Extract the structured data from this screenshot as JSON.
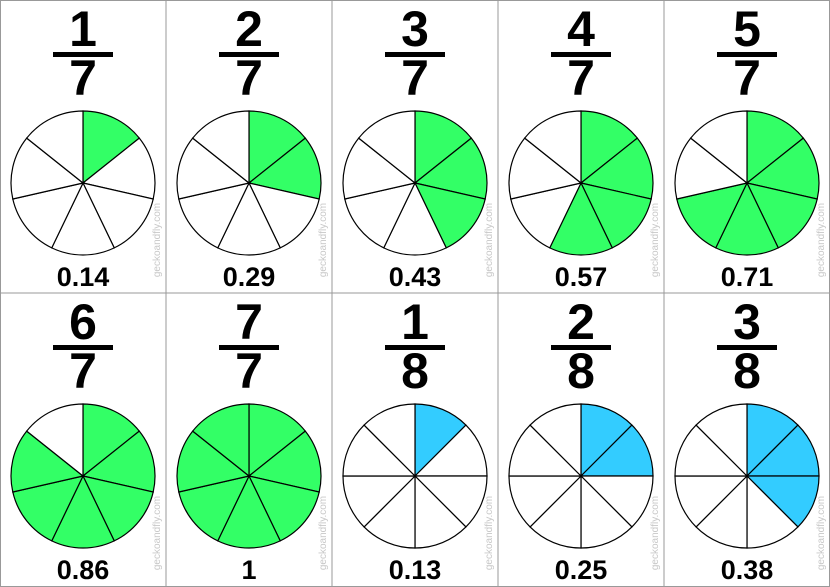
{
  "watermark": "geckoandfly.com",
  "cards": [
    {
      "numerator": 1,
      "denominator": 7,
      "decimal": "0.14",
      "color": "#33ff66"
    },
    {
      "numerator": 2,
      "denominator": 7,
      "decimal": "0.29",
      "color": "#33ff66"
    },
    {
      "numerator": 3,
      "denominator": 7,
      "decimal": "0.43",
      "color": "#33ff66"
    },
    {
      "numerator": 4,
      "denominator": 7,
      "decimal": "0.57",
      "color": "#33ff66"
    },
    {
      "numerator": 5,
      "denominator": 7,
      "decimal": "0.71",
      "color": "#33ff66"
    },
    {
      "numerator": 6,
      "denominator": 7,
      "decimal": "0.86",
      "color": "#33ff66"
    },
    {
      "numerator": 7,
      "denominator": 7,
      "decimal": "1",
      "color": "#33ff66"
    },
    {
      "numerator": 1,
      "denominator": 8,
      "decimal": "0.13",
      "color": "#33ccff"
    },
    {
      "numerator": 2,
      "denominator": 8,
      "decimal": "0.25",
      "color": "#33ccff"
    },
    {
      "numerator": 3,
      "denominator": 8,
      "decimal": "0.38",
      "color": "#33ccff"
    }
  ]
}
